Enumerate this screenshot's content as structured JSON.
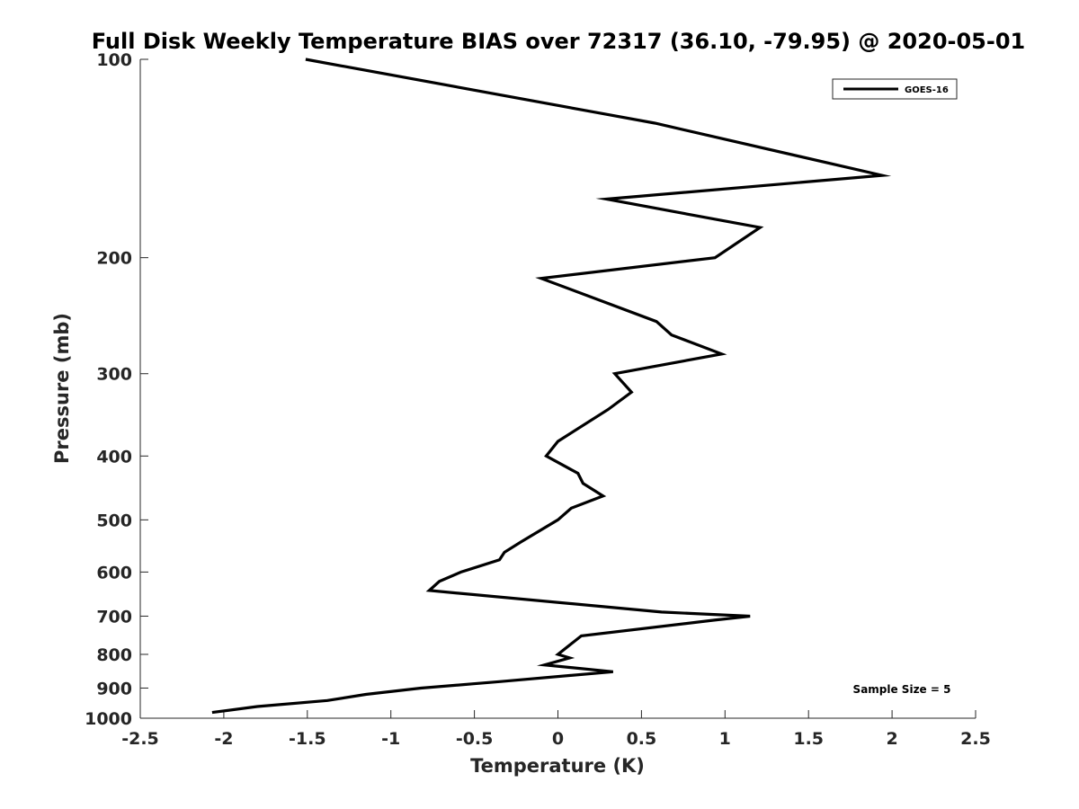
{
  "chart_data": {
    "type": "line",
    "title": "Full Disk Weekly Temperature BIAS over 72317 (36.10, -79.95) @ 2020-05-01",
    "xlabel": "Temperature (K)",
    "ylabel": "Pressure (mb)",
    "xlim": [
      -2.5,
      2.5
    ],
    "ylim": [
      100,
      1000
    ],
    "y_scale": "log",
    "y_reversed": true,
    "grid": false,
    "legend_position": "top-right",
    "x_ticks": [
      -2.5,
      -2,
      -1.5,
      -1,
      -0.5,
      0,
      0.5,
      1,
      1.5,
      2,
      2.5
    ],
    "x_tick_labels": [
      "-2.5",
      "-2",
      "-1.5",
      "-1",
      "-0.5",
      "0",
      "0.5",
      "1",
      "1.5",
      "2",
      "2.5"
    ],
    "y_ticks": [
      100,
      200,
      300,
      400,
      500,
      600,
      700,
      800,
      900,
      1000
    ],
    "y_tick_labels": [
      "100",
      "200",
      "300",
      "400",
      "500",
      "600",
      "700",
      "800",
      "900",
      "1000"
    ],
    "series": [
      {
        "name": "GOES-16",
        "color": "#000000",
        "points": [
          {
            "x": -1.51,
            "p": 100
          },
          {
            "x": 0.58,
            "p": 125
          },
          {
            "x": 1.94,
            "p": 150
          },
          {
            "x": 0.29,
            "p": 163
          },
          {
            "x": 1.21,
            "p": 180
          },
          {
            "x": 0.94,
            "p": 200
          },
          {
            "x": -0.1,
            "p": 215
          },
          {
            "x": 0.59,
            "p": 250
          },
          {
            "x": 0.68,
            "p": 262
          },
          {
            "x": 0.98,
            "p": 280
          },
          {
            "x": 0.34,
            "p": 300
          },
          {
            "x": 0.44,
            "p": 320
          },
          {
            "x": 0.3,
            "p": 340
          },
          {
            "x": 0.0,
            "p": 380
          },
          {
            "x": -0.07,
            "p": 400
          },
          {
            "x": 0.12,
            "p": 425
          },
          {
            "x": 0.15,
            "p": 440
          },
          {
            "x": 0.27,
            "p": 460
          },
          {
            "x": 0.08,
            "p": 480
          },
          {
            "x": 0.0,
            "p": 500
          },
          {
            "x": -0.22,
            "p": 540
          },
          {
            "x": -0.32,
            "p": 560
          },
          {
            "x": -0.35,
            "p": 575
          },
          {
            "x": -0.58,
            "p": 600
          },
          {
            "x": -0.71,
            "p": 620
          },
          {
            "x": -0.77,
            "p": 640
          },
          {
            "x": 0.62,
            "p": 690
          },
          {
            "x": 1.15,
            "p": 700
          },
          {
            "x": 0.93,
            "p": 710
          },
          {
            "x": 0.14,
            "p": 750
          },
          {
            "x": 0.0,
            "p": 800
          },
          {
            "x": 0.07,
            "p": 810
          },
          {
            "x": -0.08,
            "p": 830
          },
          {
            "x": 0.33,
            "p": 850
          },
          {
            "x": -0.35,
            "p": 880
          },
          {
            "x": -0.82,
            "p": 900
          },
          {
            "x": -1.15,
            "p": 920
          },
          {
            "x": -1.38,
            "p": 940
          },
          {
            "x": -1.8,
            "p": 960
          },
          {
            "x": -2.07,
            "p": 980
          }
        ]
      }
    ],
    "annotation": "Sample Size = 5"
  }
}
